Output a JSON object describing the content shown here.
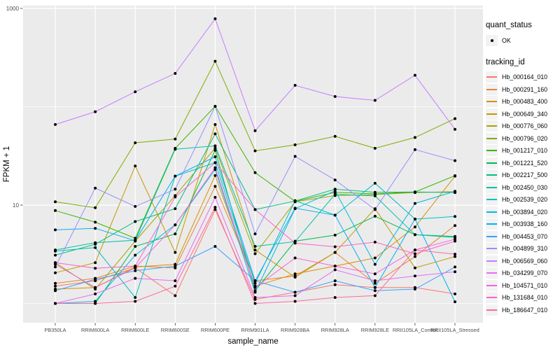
{
  "chart_data": {
    "type": "line",
    "title": "",
    "xlabel": "sample_name",
    "ylabel": "FPKM + 1",
    "y_scale": "log10",
    "y_axis_tick_labels": [
      "1000",
      "10"
    ],
    "y_axis_tick_values": [
      1000,
      10
    ],
    "y_minor_gridline_values": [
      100,
      1
    ],
    "ylim": [
      0.65,
      1100
    ],
    "grid": true,
    "legend_position": "right",
    "point_color": "#000000",
    "categories": [
      "PB350LA",
      "RRIM600LA",
      "RRIM600LE",
      "RRIM600SE",
      "RRIM600PE",
      "RRIM901LA",
      "RRIM928BA",
      "RRIM928LA",
      "RRIM928LE",
      "RRII105LA_Control",
      "RRII105LA_Stressed"
    ],
    "series": [
      {
        "name": "Hb_000164_010",
        "color": "#F8766D",
        "values": [
          1.5,
          1.7,
          2.3,
          1.2,
          9.0,
          1.1,
          1.3,
          1.55,
          1.45,
          1.45,
          1.25
        ]
      },
      {
        "name": "Hb_000291_160",
        "color": "#EA8331",
        "values": [
          1.6,
          1.8,
          2.4,
          2.3,
          15.5,
          1.7,
          1.9,
          3.3,
          1.6,
          3.0,
          6.2
        ]
      },
      {
        "name": "Hb_000483_400",
        "color": "#D89000",
        "values": [
          1.4,
          1.45,
          2.35,
          2.5,
          20,
          1.5,
          2.0,
          2.4,
          2.9,
          6.0,
          19.7
        ]
      },
      {
        "name": "Hb_000649_340",
        "color": "#C09B00",
        "values": [
          2.05,
          2.6,
          25,
          3.3,
          66,
          3.5,
          1.85,
          3.3,
          9.2,
          2.3,
          3.0
        ]
      },
      {
        "name": "Hb_000776_060",
        "color": "#A3A500",
        "values": [
          2.6,
          1.4,
          4.3,
          12.5,
          38,
          3.2,
          10.8,
          12.5,
          12.8,
          13.4,
          13.7
        ]
      },
      {
        "name": "Hb_000796_020",
        "color": "#7CAE00",
        "values": [
          10.8,
          9.4,
          43,
          47,
          290,
          35.6,
          41,
          50,
          37.8,
          48.7,
          75.7
        ]
      },
      {
        "name": "Hb_001217_010",
        "color": "#39B600",
        "values": [
          8.8,
          6.7,
          4.6,
          37.8,
          101,
          21.4,
          10.9,
          13.5,
          13.0,
          13.6,
          19.9
        ]
      },
      {
        "name": "Hb_001221_520",
        "color": "#00BB4E",
        "values": [
          1.0,
          1.0,
          3.8,
          5.1,
          36,
          1.35,
          4.3,
          4.95,
          7.7,
          5.0,
          4.7
        ]
      },
      {
        "name": "Hb_002217_500",
        "color": "#00BF7D",
        "values": [
          3.1,
          4.0,
          6.8,
          9.2,
          53,
          9.0,
          11.0,
          14.5,
          13.5,
          13.6,
          13.4
        ]
      },
      {
        "name": "Hb_002450_030",
        "color": "#00C1A3",
        "values": [
          3.5,
          4.15,
          4.4,
          37,
          40,
          3.8,
          4.25,
          12.9,
          12.4,
          5.0,
          4.8
        ]
      },
      {
        "name": "Hb_002539_020",
        "color": "#00BFC4",
        "values": [
          3.4,
          3.7,
          1.15,
          19.7,
          27,
          1.6,
          11.1,
          7.9,
          16.7,
          7.2,
          7.65
        ]
      },
      {
        "name": "Hb_003894_020",
        "color": "#00BAE0",
        "values": [
          1.0,
          1.05,
          3.1,
          6.3,
          23,
          1.3,
          9.2,
          14.0,
          2.5,
          10.4,
          13.8
        ]
      },
      {
        "name": "Hb_003938_160",
        "color": "#00B0F6",
        "values": [
          5.6,
          5.8,
          4.35,
          19.7,
          31,
          1.7,
          9.3,
          7.9,
          1.45,
          7.2,
          1.04
        ]
      },
      {
        "name": "Hb_004453_070",
        "color": "#35A2FF",
        "values": [
          1.35,
          1.76,
          2.15,
          2.4,
          3.8,
          1.7,
          1.3,
          1.7,
          1.35,
          1.4,
          2.35
        ]
      },
      {
        "name": "Hb_004899_310",
        "color": "#9590FF",
        "values": [
          2.35,
          14.9,
          9.7,
          14.5,
          101,
          5.1,
          31.3,
          18,
          9.0,
          36.7,
          28.3
        ]
      },
      {
        "name": "Hb_006569_060",
        "color": "#C77CFF",
        "values": [
          66,
          89,
          142,
          218,
          785,
          57,
          165,
          127,
          116,
          209,
          59
        ]
      },
      {
        "name": "Hb_034299_070",
        "color": "#E76BF3",
        "values": [
          1.0,
          1.25,
          1.8,
          1.7,
          12,
          1.15,
          1.2,
          2.2,
          1.7,
          1.9,
          2.1
        ]
      },
      {
        "name": "Hb_104571_010",
        "color": "#FA62DB",
        "values": [
          2.5,
          1.45,
          2.3,
          6.3,
          24,
          1.45,
          2.9,
          2.4,
          2.0,
          3.5,
          4.5
        ]
      },
      {
        "name": "Hb_131684_010",
        "color": "#FF61CC",
        "values": [
          2.6,
          2.28,
          2.4,
          12.1,
          27,
          9.0,
          4.1,
          3.77,
          4.2,
          3.2,
          4.3
        ]
      },
      {
        "name": "Hb_186647_010",
        "color": "#FF689F",
        "values": [
          1.0,
          1.0,
          1.05,
          1.5,
          9.5,
          1.0,
          1.05,
          1.15,
          1.2,
          3.5,
          3.17
        ]
      }
    ]
  },
  "legend": {
    "quant_status_title": "quant_status",
    "quant_status_items": [
      {
        "label": "OK"
      }
    ],
    "tracking_id_title": "tracking_id"
  },
  "colors": {
    "panel_bg": "#EBEBEB",
    "gridline": "#FFFFFF",
    "tick_text": "#4D4D4D",
    "title_text": "#000000",
    "legend_key_bg": "#F2F2F2"
  }
}
